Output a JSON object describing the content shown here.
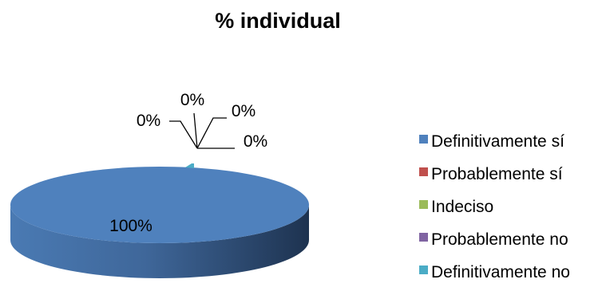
{
  "chart_data": {
    "type": "pie",
    "title": "% individual",
    "categories": [
      "Definitivamente sí",
      "Probablemente sí",
      "Indeciso",
      "Probablemente no",
      "Definitivamente no"
    ],
    "values": [
      100,
      0,
      0,
      0,
      0
    ],
    "data_labels": [
      "100%",
      "0%",
      "0%",
      "0%",
      "0%"
    ],
    "colors": [
      "#4F81BD",
      "#C0504D",
      "#9BBB59",
      "#8064A2",
      "#4BACC6"
    ],
    "style": "3d",
    "legend_position": "right"
  }
}
